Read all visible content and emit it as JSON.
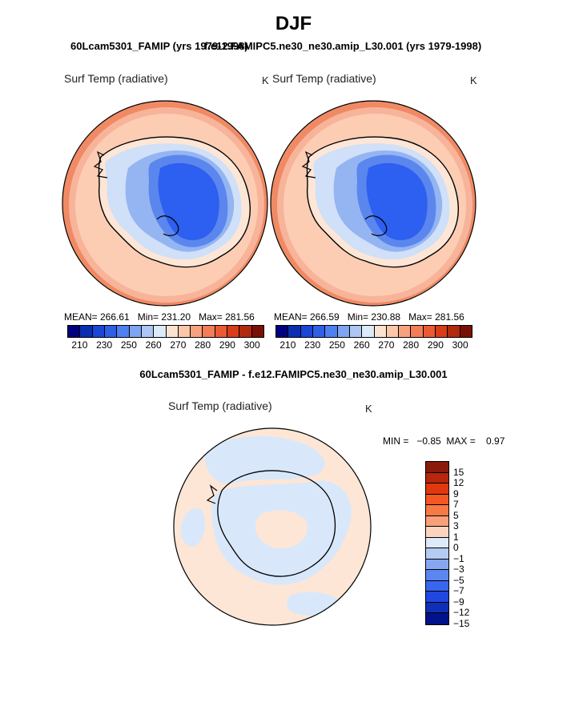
{
  "figure": {
    "season": "DJF",
    "left_case_title": "60Lcam5301_FAMIP (yrs 1979-1998)",
    "right_case_title": "f.e12.FAMIPC5.ne30_ne30.amip_L30.001 (yrs 1979-1998)",
    "diff_title": "60Lcam5301_FAMIP - f.e12.FAMIPC5.ne30_ne30.amip_L30.001"
  },
  "panels": {
    "left": {
      "label": "Surf Temp (radiative)",
      "units": "K",
      "stats": "MEAN= 266.61   Min= 231.20   Max= 281.56"
    },
    "right": {
      "label": "Surf Temp (radiative)",
      "units": "K",
      "stats": "MEAN= 266.59   Min= 230.88   Max= 281.56"
    },
    "diff": {
      "label": "Surf Temp (radiative)",
      "units": "K",
      "stats": "MIN =   −0.85  MAX =    0.97"
    }
  },
  "colorbar_abs": {
    "colors": [
      "#000080",
      "#0a2fb0",
      "#1b46d6",
      "#2f5fe6",
      "#4f80f0",
      "#7ea4f2",
      "#aec6f3",
      "#ddeafa",
      "#fde3cf",
      "#fbc7a8",
      "#f7a27f",
      "#f27d56",
      "#ec5a33",
      "#d93d18",
      "#b02a0e",
      "#7a1005"
    ],
    "tick_labels": [
      "210",
      "230",
      "250",
      "260",
      "270",
      "280",
      "290",
      "300"
    ]
  },
  "colorbar_diff": {
    "colors": [
      "#8a1a0a",
      "#b8260c",
      "#e0380f",
      "#f45822",
      "#f77a45",
      "#f9a07a",
      "#fcd4bd",
      "#ddeafa",
      "#b4cbf2",
      "#86a6f0",
      "#5b86f0",
      "#3a66ee",
      "#2048e0",
      "#0f2fb8",
      "#00138a"
    ],
    "tick_labels": [
      "15",
      "12",
      "9",
      "7",
      "5",
      "3",
      "1",
      "0",
      "−1",
      "−3",
      "−5",
      "−7",
      "−9",
      "−12",
      "−15"
    ]
  },
  "map_colors": {
    "outer_warm": "#f08a64",
    "mid_warm": "#f7b49a",
    "ocean_light": "#fccdb3",
    "ice_edge": "#fde6d6",
    "ice_light": "#cfe0f8",
    "ice_mid": "#94b5f2",
    "ice_deep": "#5a86ee",
    "ice_core": "#2d5ff0",
    "diff_ocean": "#fde6d6",
    "diff_blue": "#d8e8fa"
  }
}
